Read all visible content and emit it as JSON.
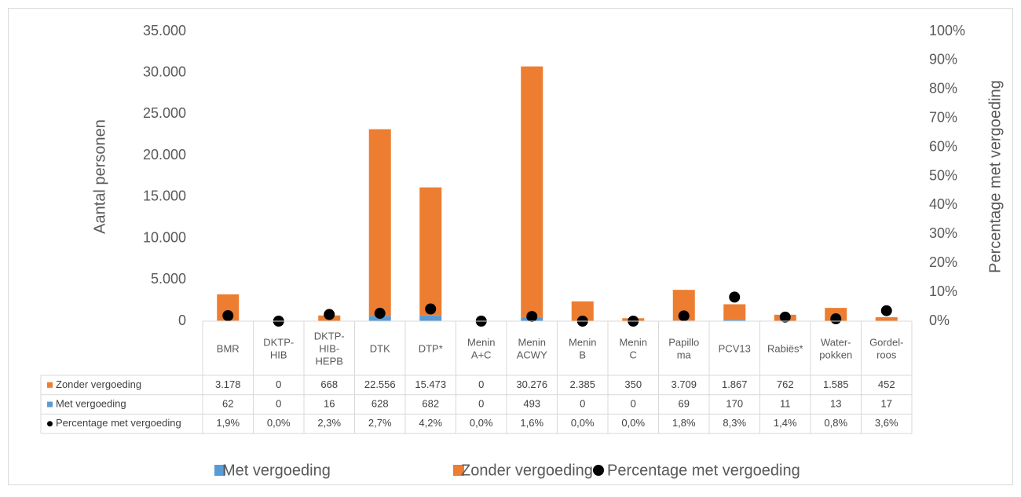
{
  "chart_data": {
    "type": "bar",
    "categories": [
      [
        "BMR"
      ],
      [
        "DKTP-",
        "HIB"
      ],
      [
        "DKTP-",
        "HIB-",
        "HEPB"
      ],
      [
        "DTK"
      ],
      [
        "DTP*"
      ],
      [
        "Menin",
        "A+C"
      ],
      [
        "Menin",
        "ACWY"
      ],
      [
        "Menin",
        "B"
      ],
      [
        "Menin",
        "C"
      ],
      [
        "Papillo",
        "ma"
      ],
      [
        "PCV13"
      ],
      [
        "Rabiës*"
      ],
      [
        "Water-",
        "pokken"
      ],
      [
        "Gordel-",
        "roos"
      ]
    ],
    "ylabel": "Aantal personen",
    "y2label": "Percentage met vergoeding",
    "ylim": [
      0,
      35000
    ],
    "yticks": [
      0,
      {
        "value": 5000,
        "label": "5.000"
      },
      {
        "value": 10000,
        "label": "10.000"
      },
      {
        "value": 15000,
        "label": "15.000"
      },
      {
        "value": 20000,
        "label": "20.000"
      },
      {
        "value": 25000,
        "label": "25.000"
      },
      {
        "value": 30000,
        "label": "30.000"
      },
      {
        "value": 35000,
        "label": "35.000"
      }
    ],
    "y2lim": [
      0,
      100
    ],
    "y2ticks": [
      {
        "value": 0,
        "label": "0%"
      },
      {
        "value": 10,
        "label": "10%"
      },
      {
        "value": 20,
        "label": "20%"
      },
      {
        "value": 30,
        "label": "30%"
      },
      {
        "value": 40,
        "label": "40%"
      },
      {
        "value": 50,
        "label": "50%"
      },
      {
        "value": 60,
        "label": "60%"
      },
      {
        "value": 70,
        "label": "70%"
      },
      {
        "value": 80,
        "label": "80%"
      },
      {
        "value": 90,
        "label": "90%"
      },
      {
        "value": 100,
        "label": "100%"
      }
    ],
    "grid": false,
    "stacked": true,
    "legend": "bottom",
    "series": [
      {
        "name": "Met vergoeding",
        "color": "#5b9bd5",
        "values": [
          62,
          0,
          16,
          628,
          682,
          0,
          493,
          0,
          0,
          69,
          170,
          11,
          13,
          17
        ],
        "value_labels": [
          "62",
          "0",
          "16",
          "628",
          "682",
          "0",
          "493",
          "0",
          "0",
          "69",
          "170",
          "11",
          "13",
          "17"
        ]
      },
      {
        "name": "Zonder vergoeding",
        "color": "#ed7d31",
        "values": [
          3178,
          0,
          668,
          22556,
          15473,
          0,
          30276,
          2385,
          350,
          3709,
          1867,
          762,
          1585,
          452
        ],
        "value_labels": [
          "3.178",
          "0",
          "668",
          "22.556",
          "15.473",
          "0",
          "30.276",
          "2.385",
          "350",
          "3.709",
          "1.867",
          "762",
          "1.585",
          "452"
        ]
      },
      {
        "name": "Percentage met vergoeding",
        "color": "#000000",
        "axis": "y2",
        "type": "scatter",
        "values": [
          1.9,
          0.0,
          2.3,
          2.7,
          4.2,
          0.0,
          1.6,
          0.0,
          0.0,
          1.8,
          8.3,
          1.4,
          0.8,
          3.6
        ],
        "value_labels": [
          "1,9%",
          "0,0%",
          "2,3%",
          "2,7%",
          "4,2%",
          "0,0%",
          "1,6%",
          "0,0%",
          "0,0%",
          "1,8%",
          "8,3%",
          "1,4%",
          "0,8%",
          "3,6%"
        ]
      }
    ]
  }
}
